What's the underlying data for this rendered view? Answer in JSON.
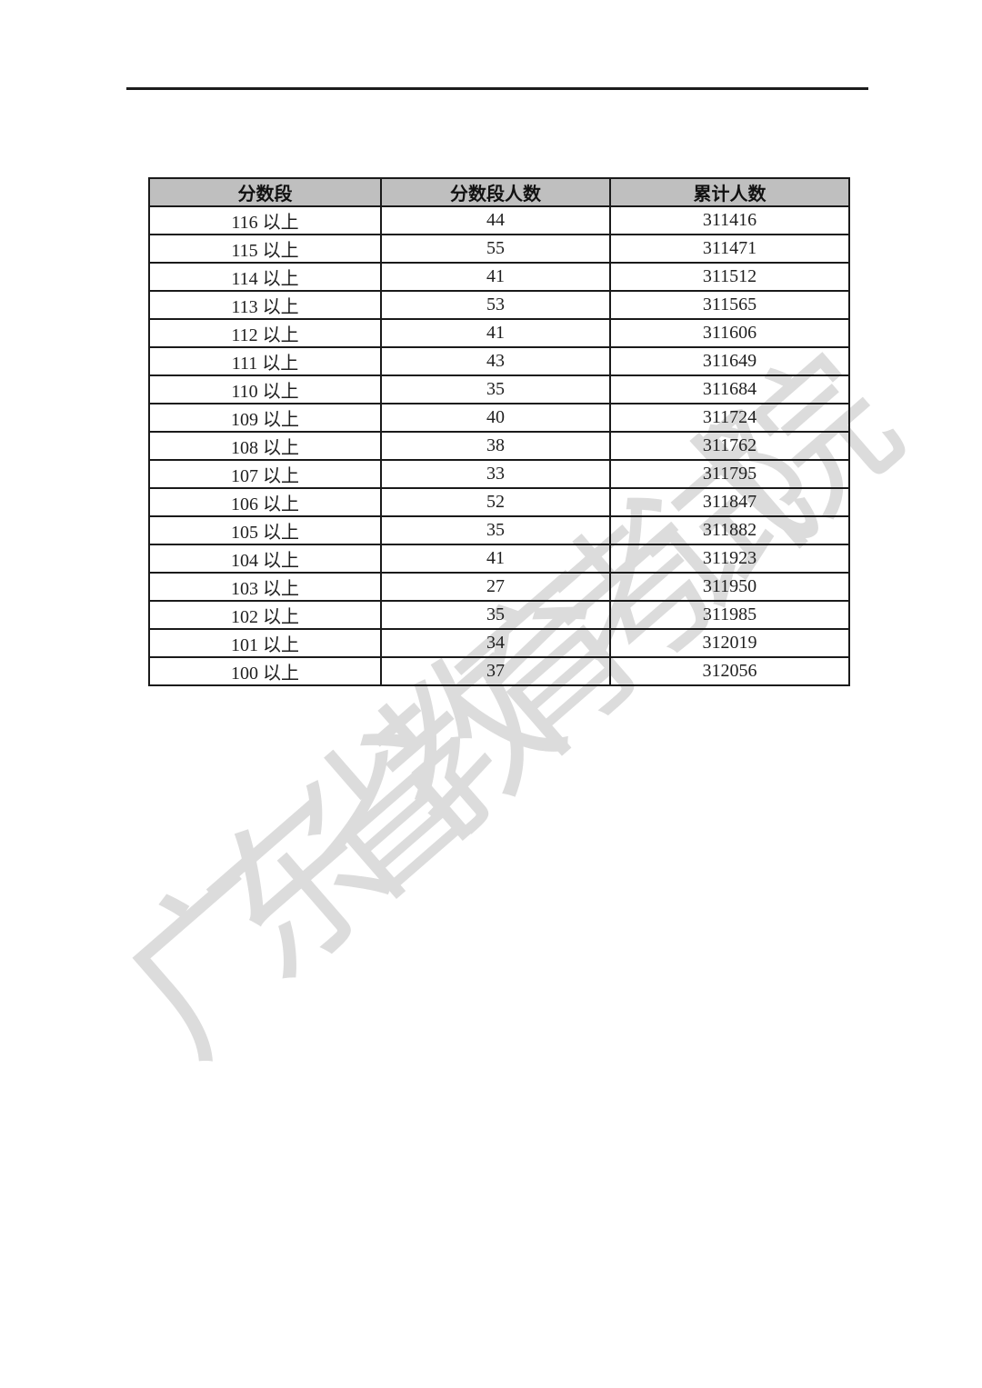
{
  "page": {
    "background": "#ffffff",
    "top_rule_color": "#1c1c1c"
  },
  "watermark": {
    "text": "广东省教育考试院",
    "color": "#dcdcdc"
  },
  "table": {
    "header_bg": "#bfbfbf",
    "border_color": "#1a1a1a",
    "columns": [
      "分数段",
      "分数段人数",
      "累计人数"
    ],
    "rows": [
      {
        "range": "116 以上",
        "segment_count": "44",
        "cumulative_count": "311416"
      },
      {
        "range": "115 以上",
        "segment_count": "55",
        "cumulative_count": "311471"
      },
      {
        "range": "114 以上",
        "segment_count": "41",
        "cumulative_count": "311512"
      },
      {
        "range": "113 以上",
        "segment_count": "53",
        "cumulative_count": "311565"
      },
      {
        "range": "112 以上",
        "segment_count": "41",
        "cumulative_count": "311606"
      },
      {
        "range": "111 以上",
        "segment_count": "43",
        "cumulative_count": "311649"
      },
      {
        "range": "110 以上",
        "segment_count": "35",
        "cumulative_count": "311684"
      },
      {
        "range": "109 以上",
        "segment_count": "40",
        "cumulative_count": "311724"
      },
      {
        "range": "108 以上",
        "segment_count": "38",
        "cumulative_count": "311762"
      },
      {
        "range": "107 以上",
        "segment_count": "33",
        "cumulative_count": "311795"
      },
      {
        "range": "106 以上",
        "segment_count": "52",
        "cumulative_count": "311847"
      },
      {
        "range": "105 以上",
        "segment_count": "35",
        "cumulative_count": "311882"
      },
      {
        "range": "104 以上",
        "segment_count": "41",
        "cumulative_count": "311923"
      },
      {
        "range": "103 以上",
        "segment_count": "27",
        "cumulative_count": "311950"
      },
      {
        "range": "102 以上",
        "segment_count": "35",
        "cumulative_count": "311985"
      },
      {
        "range": "101 以上",
        "segment_count": "34",
        "cumulative_count": "312019"
      },
      {
        "range": "100 以上",
        "segment_count": "37",
        "cumulative_count": "312056"
      }
    ]
  }
}
